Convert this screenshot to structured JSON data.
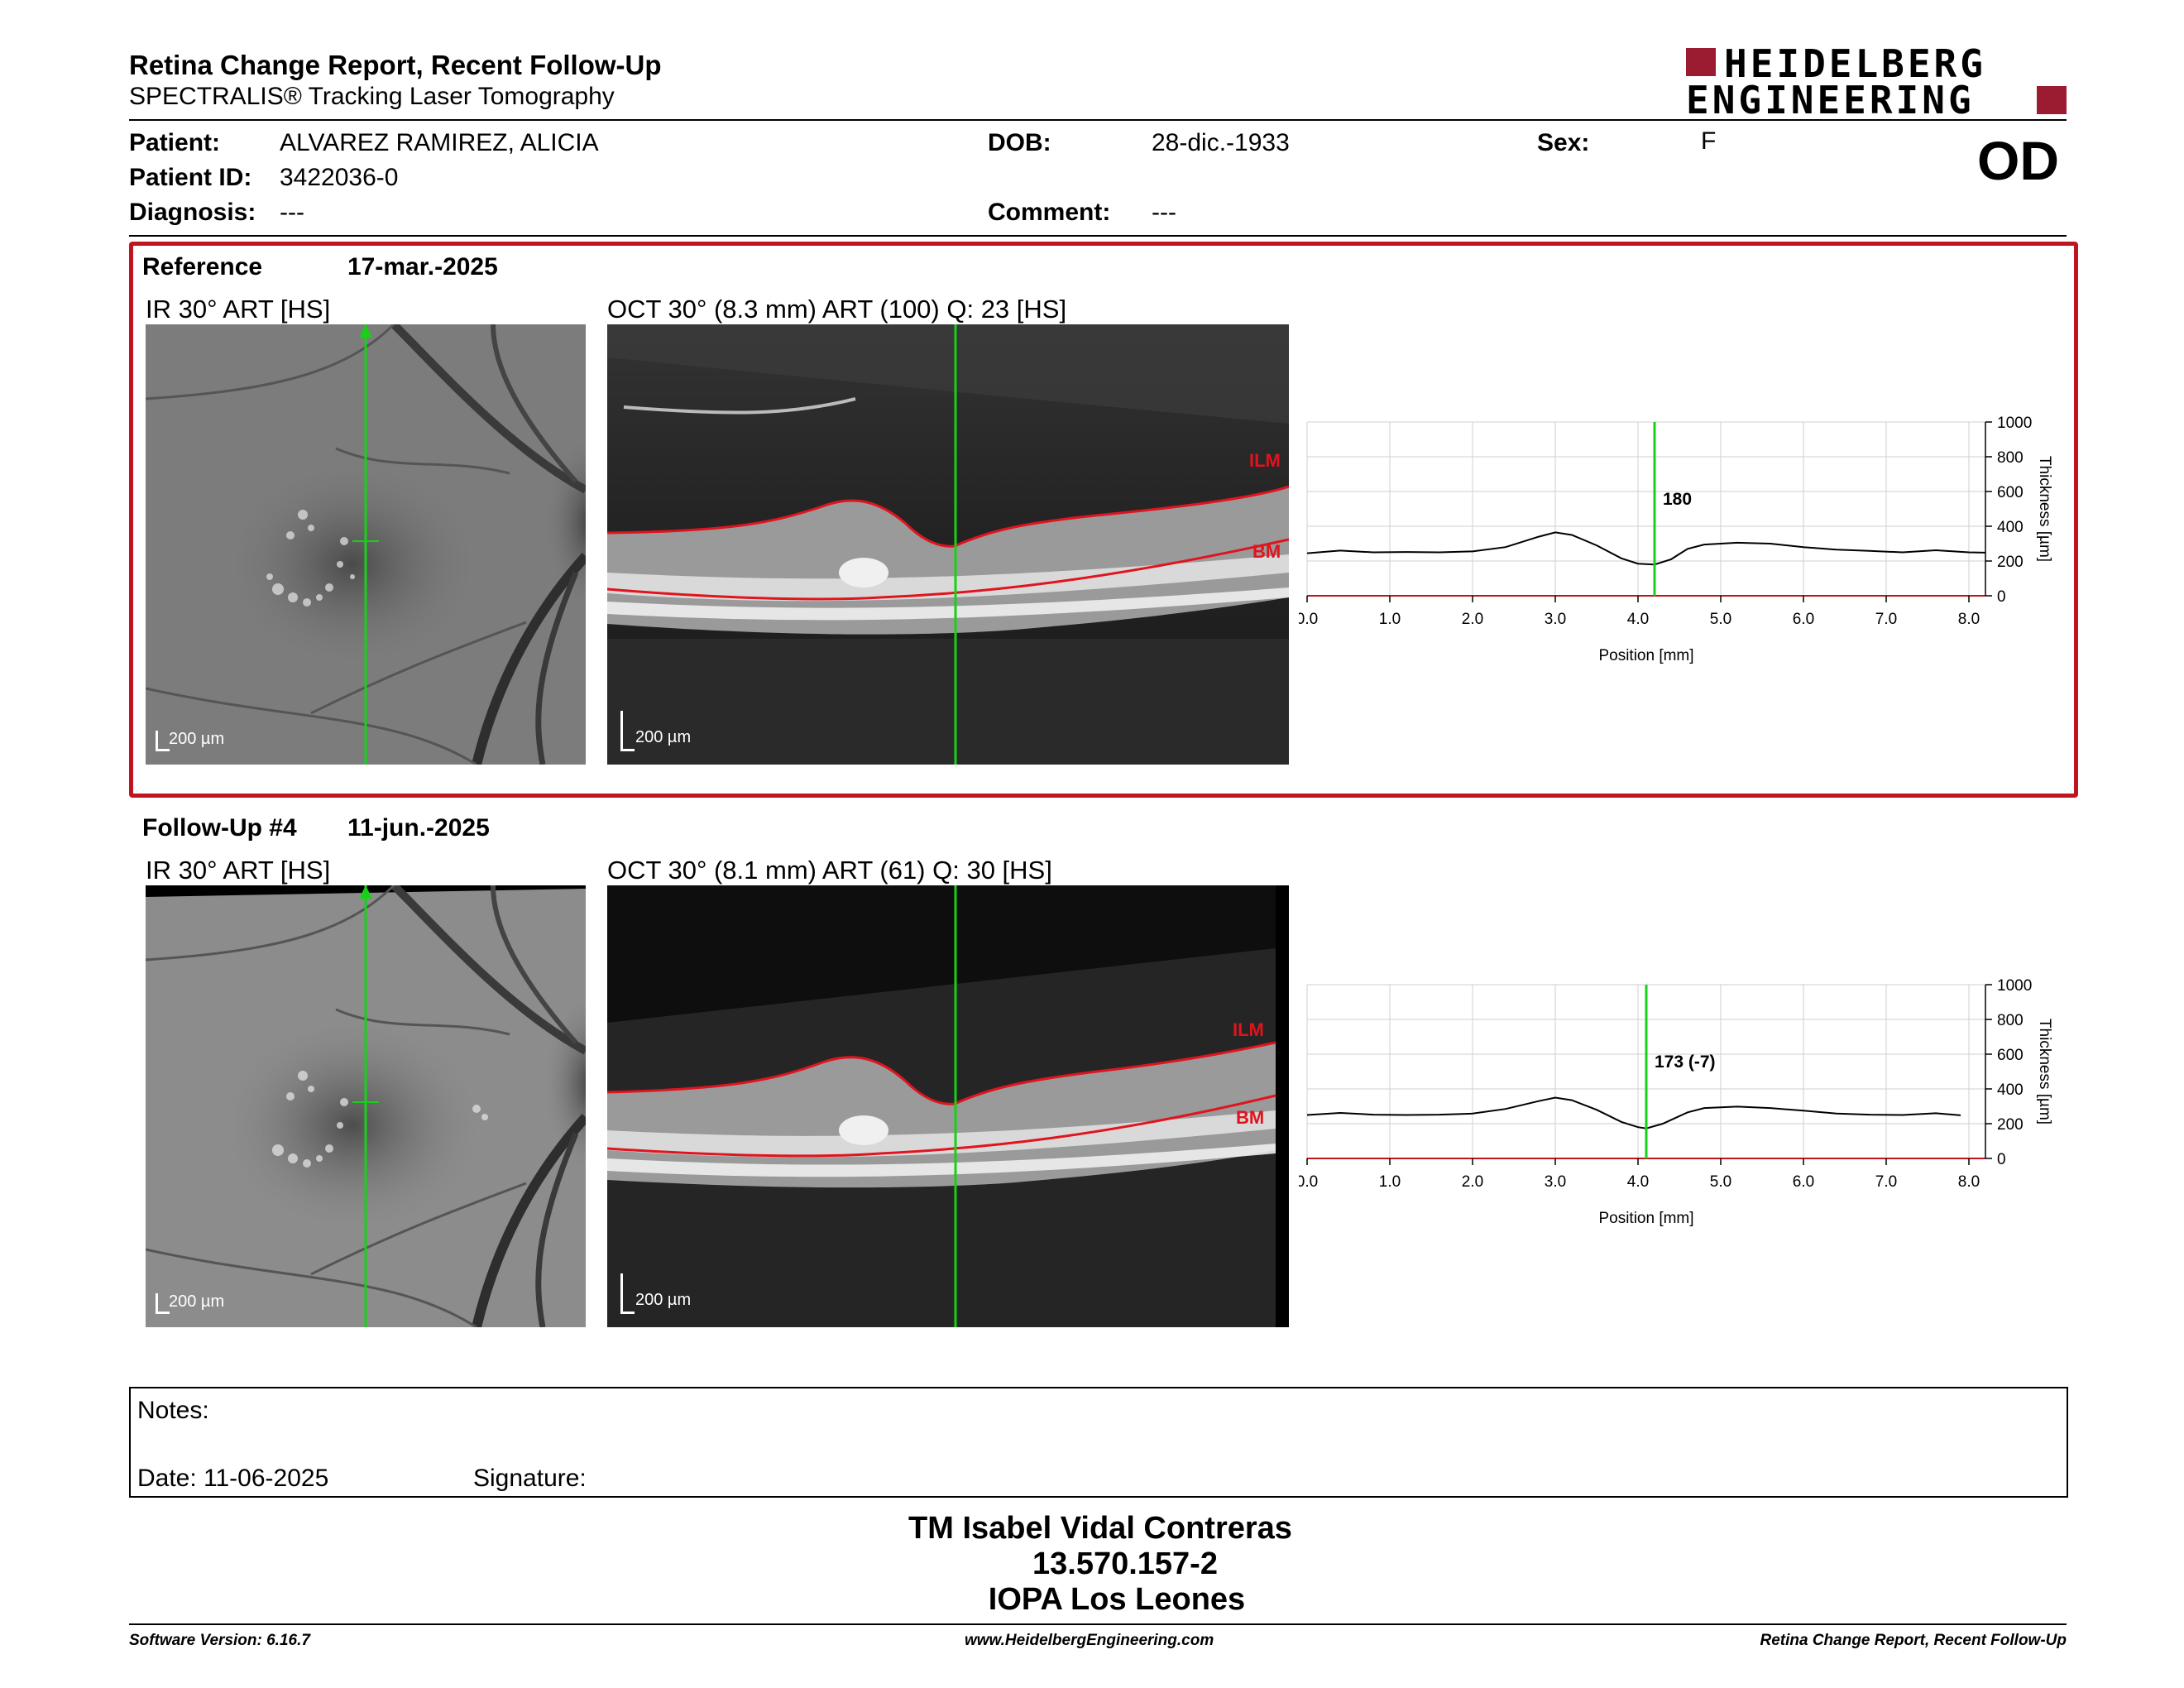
{
  "header": {
    "title": "Retina Change Report, Recent Follow-Up",
    "subtitle": "SPECTRALIS® Tracking Laser Tomography",
    "logo_line1": "HEIDELBERG",
    "logo_line2": "ENGINEERING",
    "eye": "OD"
  },
  "patient": {
    "patient_label": "Patient:",
    "patient_value": "ALVAREZ RAMIREZ, ALICIA",
    "id_label": "Patient ID:",
    "id_value": "3422036-0",
    "diagnosis_label": "Diagnosis:",
    "diagnosis_value": "---",
    "dob_label": "DOB:",
    "dob_value": "28-dic.-1933",
    "comment_label": "Comment:",
    "comment_value": "---",
    "sex_label": "Sex:",
    "sex_value": "F"
  },
  "reference": {
    "label": "Reference",
    "date": "17-mar.-2025",
    "ir_title": "IR 30° ART [HS]",
    "oct_title": "OCT 30° (8.3 mm) ART (100) Q: 23 [HS]",
    "scale": "200 µm",
    "ilm": "ILM",
    "bm": "BM"
  },
  "followup": {
    "label": "Follow-Up #4",
    "date": "11-jun.-2025",
    "ir_title": "IR 30° ART [HS]",
    "oct_title": "OCT 30° (8.1 mm) ART (61) Q: 30 [HS]",
    "scale": "200 µm",
    "ilm": "ILM",
    "bm": "BM"
  },
  "chart_data": [
    {
      "type": "line",
      "xlabel": "Position [mm]",
      "ylabel": "Thickness [µm]",
      "xlim": [
        0,
        8.2
      ],
      "ylim": [
        0,
        1000
      ],
      "xticks": [
        "0.0",
        "1.0",
        "2.0",
        "3.0",
        "4.0",
        "5.0",
        "6.0",
        "7.0",
        "8.0"
      ],
      "yticks": [
        "0",
        "200",
        "400",
        "600",
        "800",
        "1000"
      ],
      "marker_x": 4.2,
      "marker_label": "180",
      "x": [
        0.0,
        0.4,
        0.8,
        1.2,
        1.6,
        2.0,
        2.4,
        2.8,
        3.0,
        3.2,
        3.5,
        3.8,
        4.0,
        4.2,
        4.4,
        4.6,
        4.8,
        5.2,
        5.6,
        6.0,
        6.4,
        6.8,
        7.2,
        7.6,
        8.0,
        8.2
      ],
      "y": [
        245,
        260,
        250,
        252,
        250,
        255,
        280,
        340,
        365,
        350,
        290,
        215,
        185,
        180,
        210,
        270,
        295,
        305,
        300,
        280,
        265,
        258,
        250,
        262,
        250,
        248
      ]
    },
    {
      "type": "line",
      "xlabel": "Position [mm]",
      "ylabel": "Thickness [µm]",
      "xlim": [
        0,
        8.2
      ],
      "ylim": [
        0,
        1000
      ],
      "xticks": [
        "0.0",
        "1.0",
        "2.0",
        "3.0",
        "4.0",
        "5.0",
        "6.0",
        "7.0",
        "8.0"
      ],
      "yticks": [
        "0",
        "200",
        "400",
        "600",
        "800",
        "1000"
      ],
      "marker_x": 4.1,
      "marker_label": "173 (-7)",
      "x": [
        0.0,
        0.4,
        0.8,
        1.2,
        1.6,
        2.0,
        2.4,
        2.8,
        3.0,
        3.2,
        3.5,
        3.8,
        4.0,
        4.1,
        4.3,
        4.6,
        4.8,
        5.2,
        5.6,
        6.0,
        6.4,
        6.8,
        7.2,
        7.6,
        7.9
      ],
      "y": [
        250,
        262,
        252,
        250,
        252,
        258,
        285,
        330,
        350,
        335,
        280,
        210,
        180,
        173,
        200,
        265,
        290,
        298,
        290,
        275,
        258,
        252,
        250,
        260,
        248
      ]
    }
  ],
  "notes": {
    "notes_label": "Notes:",
    "date_label": "Date: 11-06-2025",
    "signature_label": "Signature:"
  },
  "signature": {
    "name": "TM Isabel Vidal Contreras",
    "rut": "13.570.157-2",
    "org": "IOPA Los Leones"
  },
  "footer": {
    "software": "Software Version: 6.16.7",
    "website": "www.HeidelbergEngineering.com",
    "report": "Retina Change Report, Recent Follow-Up"
  },
  "colors": {
    "brand": "#9b1b30",
    "frame": "#c0141e",
    "marker": "#18d018",
    "seg": "#e0141e"
  }
}
